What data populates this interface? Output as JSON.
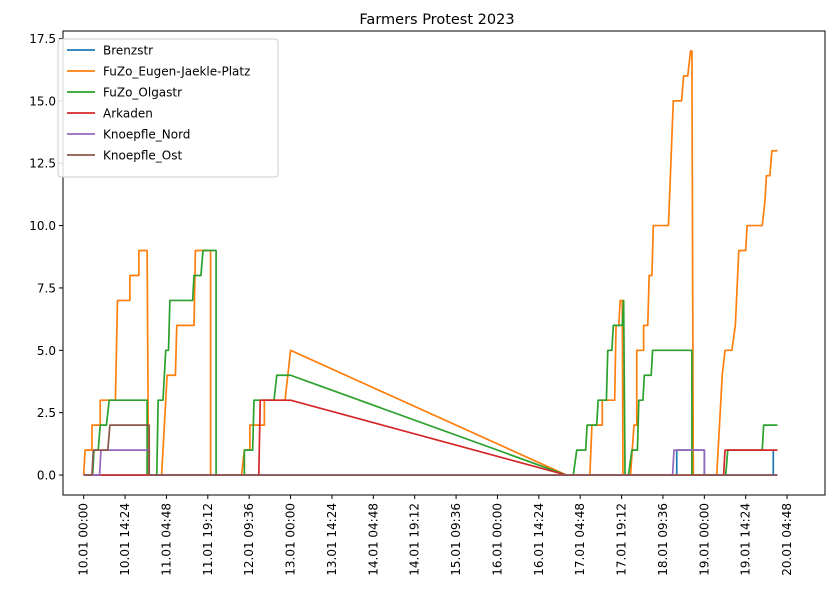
{
  "chart_data": {
    "type": "line",
    "title": "Farmers Protest 2023",
    "xlabel": "",
    "ylabel": "",
    "x_unit": "days",
    "xlim": [
      -0.3,
      10.75
    ],
    "ylim": [
      -0.8,
      17.8
    ],
    "grid": false,
    "legend_position": "top-left",
    "x_ticks": [
      {
        "v": 0.0,
        "label": "10.01 00:00"
      },
      {
        "v": 0.6,
        "label": "10.01 14:24"
      },
      {
        "v": 1.2,
        "label": "11.01 04:48"
      },
      {
        "v": 1.8,
        "label": "11.01 19:12"
      },
      {
        "v": 2.4,
        "label": "12.01 09:36"
      },
      {
        "v": 3.0,
        "label": "13.01 00:00"
      },
      {
        "v": 3.6,
        "label": "13.01 14:24"
      },
      {
        "v": 4.2,
        "label": "14.01 04:48"
      },
      {
        "v": 4.8,
        "label": "14.01 19:12"
      },
      {
        "v": 5.4,
        "label": "15.01 09:36"
      },
      {
        "v": 6.0,
        "label": "16.01 00:00"
      },
      {
        "v": 6.6,
        "label": "16.01 14:24"
      },
      {
        "v": 7.2,
        "label": "17.01 04:48"
      },
      {
        "v": 7.8,
        "label": "17.01 19:12"
      },
      {
        "v": 8.4,
        "label": "18.01 09:36"
      },
      {
        "v": 9.0,
        "label": "19.01 00:00"
      },
      {
        "v": 9.6,
        "label": "19.01 14:24"
      },
      {
        "v": 10.2,
        "label": "20.01 04:48"
      }
    ],
    "y_ticks": [
      {
        "v": 0.0,
        "label": "0.0"
      },
      {
        "v": 2.5,
        "label": "2.5"
      },
      {
        "v": 5.0,
        "label": "5.0"
      },
      {
        "v": 7.5,
        "label": "7.5"
      },
      {
        "v": 10.0,
        "label": "10.0"
      },
      {
        "v": 12.5,
        "label": "12.5"
      },
      {
        "v": 15.0,
        "label": "15.0"
      },
      {
        "v": 17.5,
        "label": "17.5"
      }
    ],
    "series": [
      {
        "name": "Brenzstr",
        "color": "#1f77b4",
        "points": [
          [
            0.0,
            0
          ],
          [
            8.6,
            0
          ],
          [
            8.6,
            1
          ],
          [
            9.0,
            1
          ],
          [
            9.0,
            0
          ],
          [
            10.0,
            0
          ],
          [
            10.0,
            1
          ],
          [
            10.0,
            0
          ],
          [
            10.06,
            0
          ]
        ]
      },
      {
        "name": "FuZo_Eugen-Jaekle-Platz",
        "color": "#ff7f0e",
        "points": [
          [
            0.0,
            0
          ],
          [
            0.02,
            1
          ],
          [
            0.12,
            1
          ],
          [
            0.12,
            2
          ],
          [
            0.24,
            2
          ],
          [
            0.24,
            3
          ],
          [
            0.46,
            3
          ],
          [
            0.49,
            7
          ],
          [
            0.67,
            7
          ],
          [
            0.67,
            8
          ],
          [
            0.8,
            8
          ],
          [
            0.8,
            9
          ],
          [
            0.92,
            9
          ],
          [
            0.94,
            0
          ],
          [
            1.13,
            0
          ],
          [
            1.17,
            2
          ],
          [
            1.21,
            4
          ],
          [
            1.33,
            4
          ],
          [
            1.35,
            6
          ],
          [
            1.6,
            6
          ],
          [
            1.62,
            9
          ],
          [
            1.84,
            9
          ],
          [
            1.84,
            0
          ],
          [
            2.29,
            0
          ],
          [
            2.33,
            1
          ],
          [
            2.41,
            1
          ],
          [
            2.41,
            2
          ],
          [
            2.62,
            2
          ],
          [
            2.62,
            3
          ],
          [
            2.92,
            3
          ],
          [
            3.0,
            5
          ],
          [
            7.0,
            0
          ],
          [
            7.34,
            0
          ],
          [
            7.37,
            2
          ],
          [
            7.52,
            2
          ],
          [
            7.52,
            3
          ],
          [
            7.7,
            3
          ],
          [
            7.72,
            6
          ],
          [
            7.76,
            6
          ],
          [
            7.78,
            7
          ],
          [
            7.81,
            7
          ],
          [
            7.82,
            0
          ],
          [
            7.93,
            0
          ],
          [
            7.98,
            2
          ],
          [
            8.02,
            2
          ],
          [
            8.02,
            5
          ],
          [
            8.12,
            5
          ],
          [
            8.12,
            6
          ],
          [
            8.18,
            6
          ],
          [
            8.2,
            8
          ],
          [
            8.24,
            8
          ],
          [
            8.26,
            10
          ],
          [
            8.48,
            10
          ],
          [
            8.55,
            15
          ],
          [
            8.67,
            15
          ],
          [
            8.7,
            16
          ],
          [
            8.76,
            16
          ],
          [
            8.8,
            17
          ],
          [
            8.82,
            17
          ],
          [
            8.84,
            0
          ],
          [
            9.18,
            0
          ],
          [
            9.22,
            2
          ],
          [
            9.26,
            4
          ],
          [
            9.3,
            5
          ],
          [
            9.4,
            5
          ],
          [
            9.45,
            6
          ],
          [
            9.5,
            9
          ],
          [
            9.6,
            9
          ],
          [
            9.62,
            10
          ],
          [
            9.84,
            10
          ],
          [
            9.88,
            11
          ],
          [
            9.9,
            12
          ],
          [
            9.95,
            12
          ],
          [
            9.98,
            13
          ],
          [
            10.06,
            13
          ]
        ]
      },
      {
        "name": "FuZo_Olgastr",
        "color": "#2ca02c",
        "points": [
          [
            0.0,
            0
          ],
          [
            0.13,
            0
          ],
          [
            0.15,
            1
          ],
          [
            0.21,
            1
          ],
          [
            0.24,
            2
          ],
          [
            0.33,
            2
          ],
          [
            0.37,
            3
          ],
          [
            0.92,
            3
          ],
          [
            0.92,
            0
          ],
          [
            1.06,
            0
          ],
          [
            1.08,
            3
          ],
          [
            1.15,
            3
          ],
          [
            1.19,
            5
          ],
          [
            1.23,
            5
          ],
          [
            1.25,
            7
          ],
          [
            1.58,
            7
          ],
          [
            1.6,
            8
          ],
          [
            1.7,
            8
          ],
          [
            1.73,
            9
          ],
          [
            1.92,
            9
          ],
          [
            1.92,
            0
          ],
          [
            2.33,
            0
          ],
          [
            2.33,
            1
          ],
          [
            2.45,
            1
          ],
          [
            2.47,
            3
          ],
          [
            2.76,
            3
          ],
          [
            2.8,
            4
          ],
          [
            3.0,
            4
          ],
          [
            7.0,
            0
          ],
          [
            7.1,
            0
          ],
          [
            7.15,
            1
          ],
          [
            7.28,
            1
          ],
          [
            7.3,
            2
          ],
          [
            7.44,
            2
          ],
          [
            7.46,
            3
          ],
          [
            7.58,
            3
          ],
          [
            7.6,
            5
          ],
          [
            7.66,
            5
          ],
          [
            7.68,
            6
          ],
          [
            7.81,
            6
          ],
          [
            7.83,
            7
          ],
          [
            7.85,
            0
          ],
          [
            7.9,
            0
          ],
          [
            7.95,
            1
          ],
          [
            8.03,
            1
          ],
          [
            8.05,
            3
          ],
          [
            8.11,
            3
          ],
          [
            8.13,
            4
          ],
          [
            8.23,
            4
          ],
          [
            8.25,
            5
          ],
          [
            8.82,
            5
          ],
          [
            8.82,
            0
          ],
          [
            9.31,
            0
          ],
          [
            9.34,
            1
          ],
          [
            9.84,
            1
          ],
          [
            9.86,
            2
          ],
          [
            10.06,
            2
          ]
        ]
      },
      {
        "name": "Arkaden",
        "color": "#d62728",
        "points": [
          [
            0.0,
            0
          ],
          [
            2.54,
            0
          ],
          [
            2.56,
            3
          ],
          [
            3.0,
            3
          ],
          [
            7.0,
            0
          ],
          [
            9.28,
            0
          ],
          [
            9.3,
            1
          ],
          [
            10.06,
            1
          ]
        ]
      },
      {
        "name": "Knoepfle_Nord",
        "color": "#9467bd",
        "points": [
          [
            0.0,
            0
          ],
          [
            0.23,
            0
          ],
          [
            0.25,
            1
          ],
          [
            0.95,
            1
          ],
          [
            0.95,
            0
          ],
          [
            8.54,
            0
          ],
          [
            8.56,
            1
          ],
          [
            9.0,
            1
          ],
          [
            9.0,
            0
          ],
          [
            10.06,
            0
          ]
        ]
      },
      {
        "name": "Knoepfle_Ost",
        "color": "#8c564b",
        "points": [
          [
            0.0,
            0
          ],
          [
            0.12,
            0
          ],
          [
            0.14,
            1
          ],
          [
            0.35,
            1
          ],
          [
            0.38,
            2
          ],
          [
            0.95,
            2
          ],
          [
            0.95,
            0
          ],
          [
            10.06,
            0
          ]
        ]
      }
    ]
  }
}
